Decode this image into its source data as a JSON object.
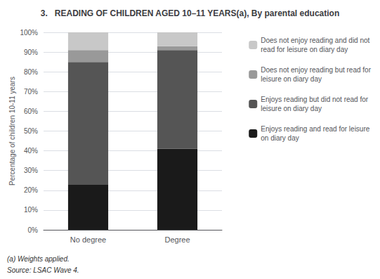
{
  "chart_data": {
    "type": "bar",
    "stacked": true,
    "title": "3.   READING OF CHILDREN AGED 10–11 YEARS(a), By parental education",
    "categories": [
      "No degree",
      "Degree"
    ],
    "series": [
      {
        "name": "Enjoys reading and read for leisure\non diary day",
        "color": "#1a1a1a",
        "values": [
          23,
          41
        ]
      },
      {
        "name": "Enjoys reading but did not read for\nleisure on diary day",
        "color": "#555555",
        "values": [
          62,
          50
        ]
      },
      {
        "name": "Does not enjoy reading but read for\nleisure on diary day",
        "color": "#999999",
        "values": [
          6,
          2
        ]
      },
      {
        "name": "Does not enjoy reading and did not\nread for leisure on diary day",
        "color": "#c8c8c8",
        "values": [
          9,
          7
        ]
      }
    ],
    "ylabel": "Percentage of children 10-11 years",
    "ylim": [
      0,
      100
    ],
    "yticks": [
      {
        "value": 0,
        "label": "0%"
      },
      {
        "value": 10,
        "label": "10%"
      },
      {
        "value": 20,
        "label": "20%"
      },
      {
        "value": 30,
        "label": "30%"
      },
      {
        "value": 40,
        "label": "40%"
      },
      {
        "value": 50,
        "label": "50%"
      },
      {
        "value": 60,
        "label": "60%"
      },
      {
        "value": 70,
        "label": "70%"
      },
      {
        "value": 80,
        "label": "80%"
      },
      {
        "value": 90,
        "label": "90%"
      },
      {
        "value": 100,
        "label": "100%"
      }
    ],
    "annotations": [
      "(a) Weights applied.",
      "Source: LSAC Wave 4."
    ],
    "grid": true,
    "legend": "right"
  }
}
